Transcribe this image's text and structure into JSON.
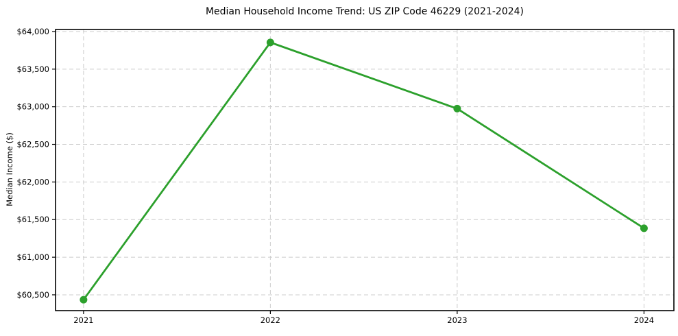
{
  "chart_data": {
    "type": "line",
    "title": "Median Household Income Trend: US ZIP Code 46229 (2021-2024)",
    "ylabel": "Median Income ($)",
    "xlabel": "",
    "x": [
      2021,
      2022,
      2023,
      2024
    ],
    "values": [
      60435,
      63855,
      62975,
      61385
    ],
    "xticks": [
      {
        "value": 2021,
        "label": "2021"
      },
      {
        "value": 2022,
        "label": "2022"
      },
      {
        "value": 2023,
        "label": "2023"
      },
      {
        "value": 2024,
        "label": "2024"
      }
    ],
    "yticks": [
      {
        "value": 60500,
        "label": "$60,500"
      },
      {
        "value": 61000,
        "label": "$61,000"
      },
      {
        "value": 61500,
        "label": "$61,500"
      },
      {
        "value": 62000,
        "label": "$62,000"
      },
      {
        "value": 62500,
        "label": "$62,500"
      },
      {
        "value": 63000,
        "label": "$63,000"
      },
      {
        "value": 63500,
        "label": "$63,500"
      },
      {
        "value": 64000,
        "label": "$64,000"
      }
    ],
    "xlim": [
      2020.85,
      2024.16
    ],
    "ylim": [
      60290,
      64027
    ],
    "grid": true,
    "legend": "none",
    "line_color": "#2ca02c",
    "grid_color": "#cccccc",
    "spine_color": "#000000",
    "text_color": "#000000"
  }
}
